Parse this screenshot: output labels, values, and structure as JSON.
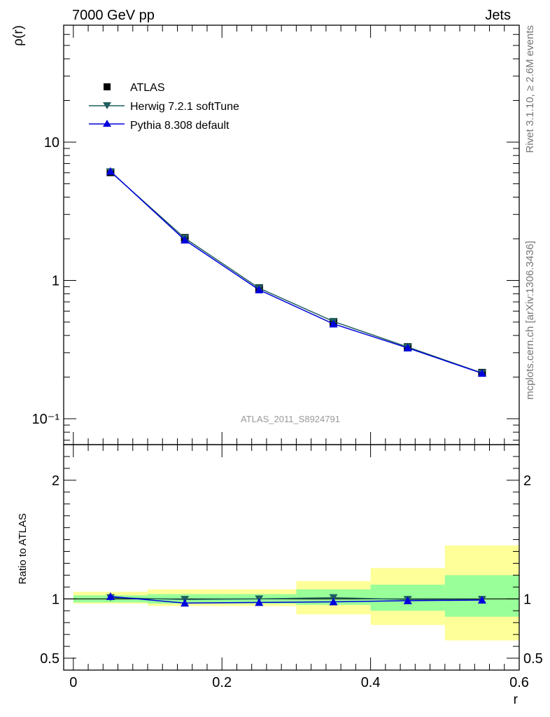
{
  "header": {
    "left": "7000 GeV pp",
    "right": "Jets"
  },
  "side_labels": {
    "rivet": "Rivet 3.1.10, ≥ 2.6M events",
    "mcplots": "mcplots.cern.ch [arXiv:1306.3436]"
  },
  "watermark": "ATLAS_2011_S8924791",
  "legend": [
    {
      "label": "ATLAS",
      "marker": "square",
      "color": "#000000"
    },
    {
      "label": "Herwig 7.2.1 softTune",
      "marker": "triangle-down",
      "color": "#1f5f5f"
    },
    {
      "label": "Pythia 8.308 default",
      "marker": "triangle-up",
      "color": "#0000dd"
    }
  ],
  "colors": {
    "data": "#000000",
    "herwig": "#1f5f5f",
    "pythia": "#0000dd",
    "band_stat": "#99ff99",
    "band_total": "#ffff99"
  },
  "chart_data": [
    {
      "type": "line",
      "panel": "main",
      "ylabel": "ρ(r)",
      "xlabel": "",
      "yscale": "log",
      "ylim": [
        0.065,
        70
      ],
      "xlim": [
        -0.013,
        0.6
      ],
      "x": [
        0.05,
        0.15,
        0.25,
        0.35,
        0.45,
        0.55
      ],
      "series": [
        {
          "name": "ATLAS",
          "values": [
            6.05,
            2.03,
            0.88,
            0.5,
            0.33,
            0.215
          ]
        },
        {
          "name": "Herwig 7.2.1 softTune",
          "values": [
            6.1,
            2.02,
            0.88,
            0.505,
            0.33,
            0.214
          ]
        },
        {
          "name": "Pythia 8.308 default",
          "values": [
            6.15,
            1.96,
            0.855,
            0.485,
            0.325,
            0.213
          ]
        }
      ],
      "yticks": [
        {
          "value": 10,
          "label": "10"
        },
        {
          "value": 1,
          "label": "1"
        },
        {
          "value": 0.1,
          "label": "10⁻¹"
        }
      ]
    },
    {
      "type": "line",
      "panel": "ratio",
      "ylabel": "Ratio to ATLAS",
      "xlabel": "r",
      "ylim": [
        0.4,
        2.3
      ],
      "xlim": [
        -0.013,
        0.6
      ],
      "x": [
        0.05,
        0.15,
        0.25,
        0.35,
        0.45,
        0.55
      ],
      "bins": [
        [
          0.0,
          0.1
        ],
        [
          0.1,
          0.2
        ],
        [
          0.2,
          0.3
        ],
        [
          0.3,
          0.4
        ],
        [
          0.4,
          0.5
        ],
        [
          0.5,
          0.6
        ]
      ],
      "band_stat": [
        [
          0.97,
          1.03
        ],
        [
          0.96,
          1.04
        ],
        [
          0.96,
          1.04
        ],
        [
          0.95,
          1.08
        ],
        [
          0.9,
          1.12
        ],
        [
          0.85,
          1.2
        ]
      ],
      "band_total": [
        [
          0.96,
          1.06
        ],
        [
          0.94,
          1.08
        ],
        [
          0.94,
          1.08
        ],
        [
          0.87,
          1.15
        ],
        [
          0.78,
          1.26
        ],
        [
          0.65,
          1.45
        ]
      ],
      "series": [
        {
          "name": "Herwig 7.2.1 softTune",
          "values": [
            1.01,
            0.995,
            1.0,
            1.01,
            0.995,
            0.995
          ]
        },
        {
          "name": "Pythia 8.308 default",
          "values": [
            1.02,
            0.965,
            0.97,
            0.975,
            0.985,
            0.99
          ]
        }
      ],
      "yticks": [
        {
          "value": 2,
          "label": "2"
        },
        {
          "value": 1,
          "label": "1"
        },
        {
          "value": 0.5,
          "label": "0.5"
        }
      ],
      "xticks": [
        {
          "value": 0,
          "label": "0"
        },
        {
          "value": 0.2,
          "label": "0.2"
        },
        {
          "value": 0.4,
          "label": "0.4"
        },
        {
          "value": 0.6,
          "label": "0.6"
        }
      ]
    }
  ]
}
